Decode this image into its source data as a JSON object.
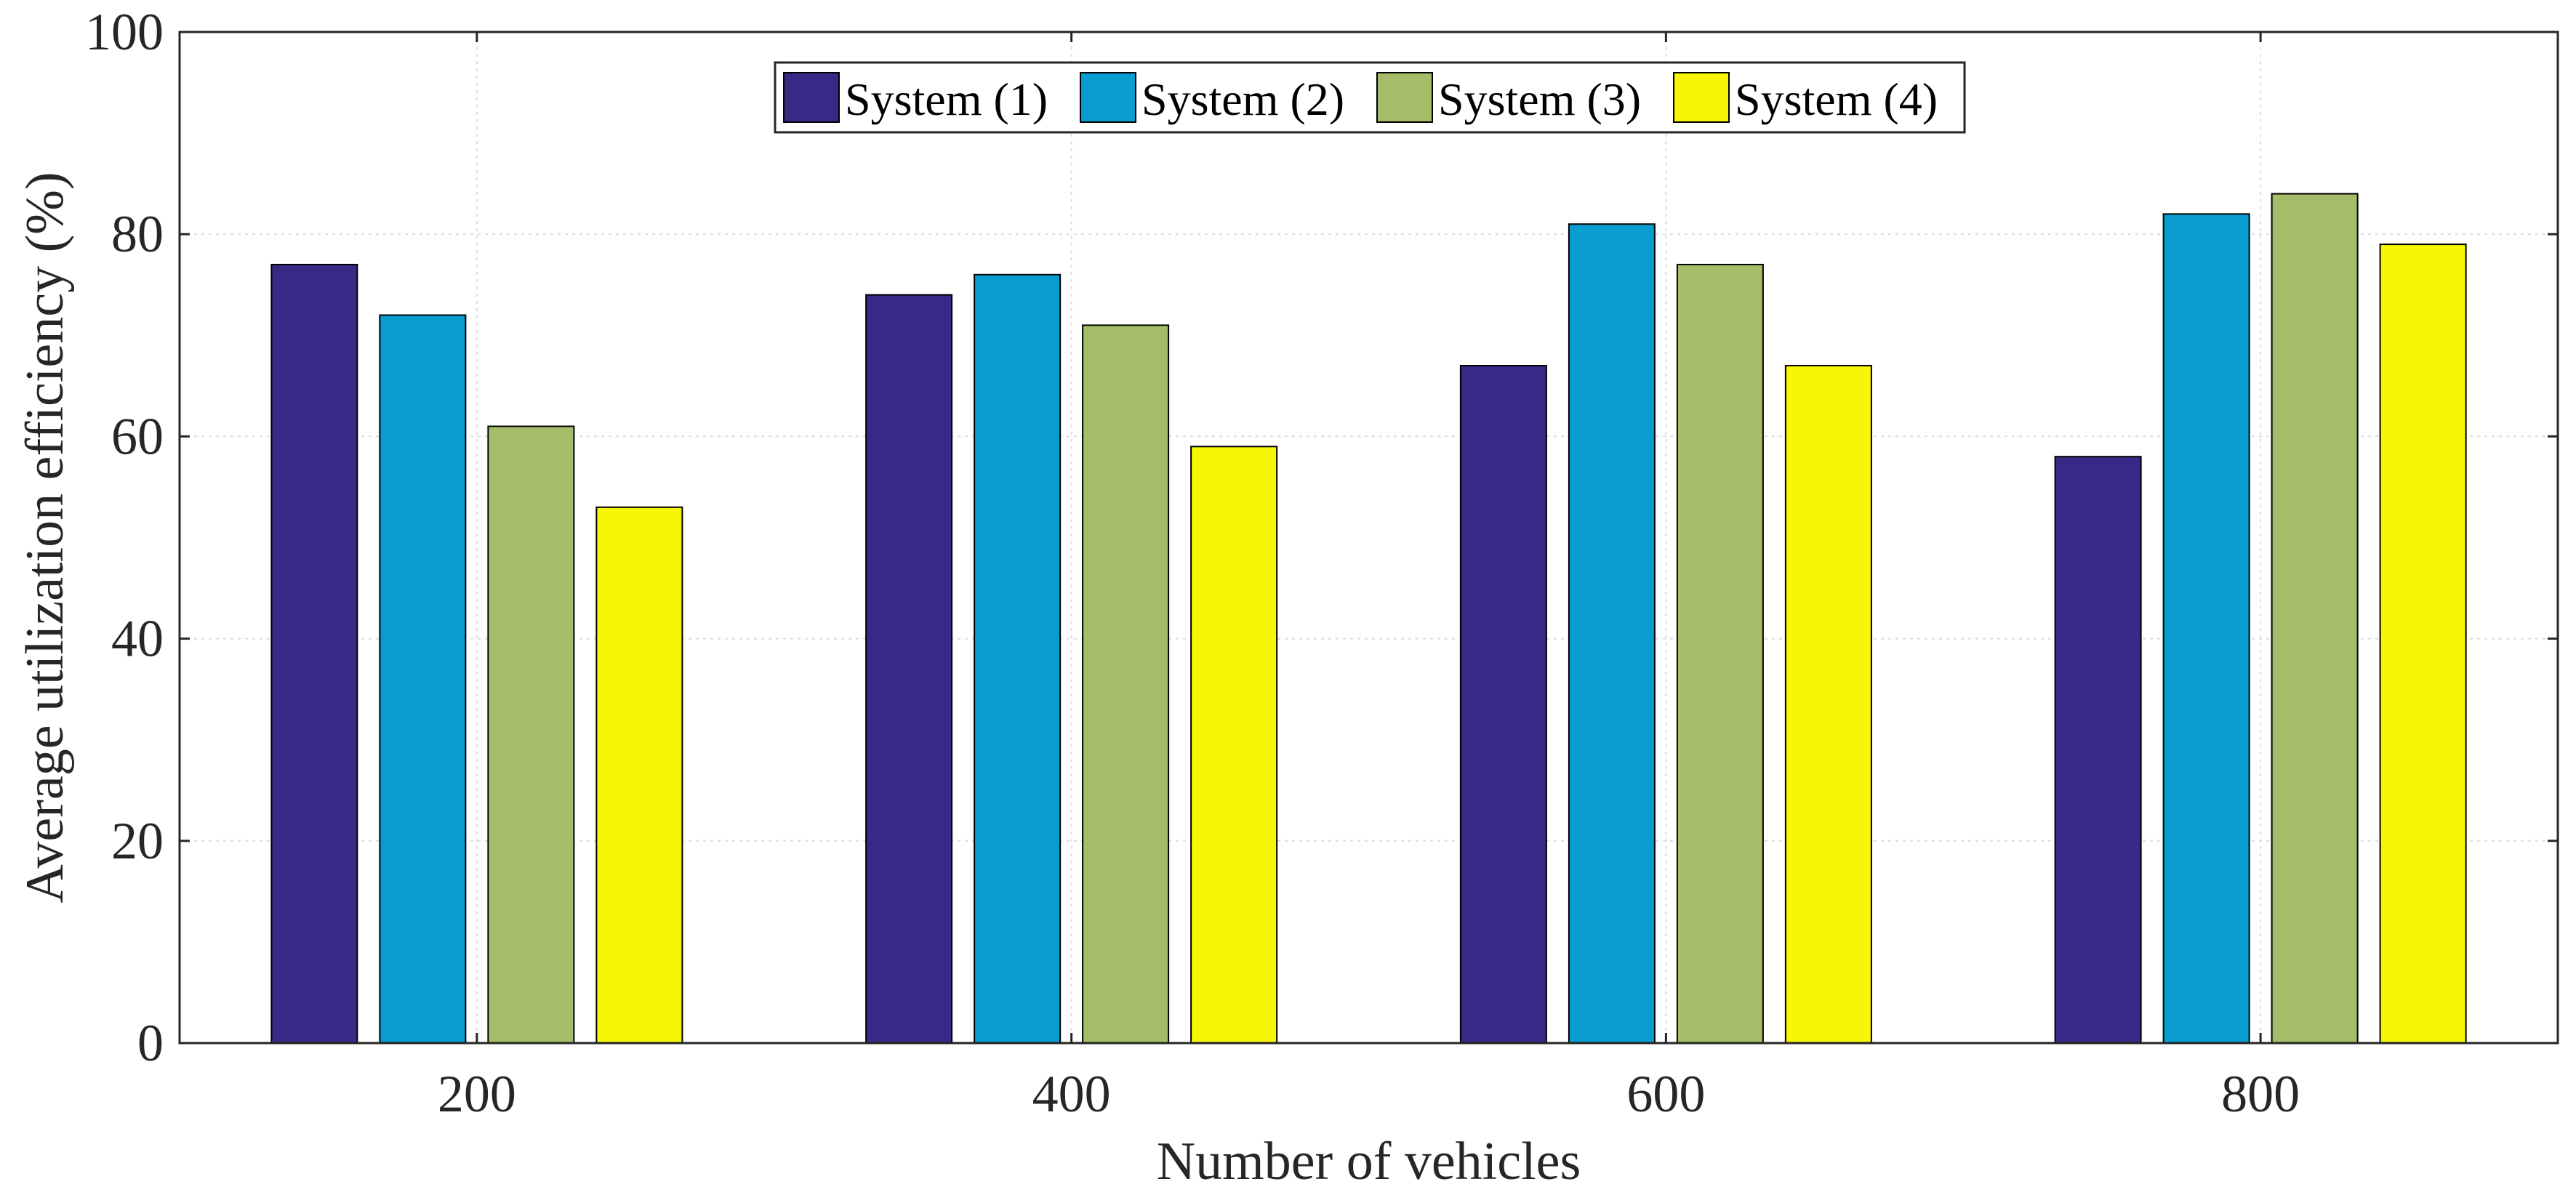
{
  "chart_data": {
    "type": "bar",
    "title": "",
    "xlabel": "Number of vehicles",
    "ylabel": "Average utilization efficiency (%)",
    "categories": [
      "200",
      "400",
      "600",
      "800"
    ],
    "ylim": [
      0,
      100
    ],
    "yticks": [
      0,
      20,
      40,
      60,
      80,
      100
    ],
    "grid": true,
    "legend_position": "top-center",
    "series": [
      {
        "name": "System (1)",
        "color": "#372a86",
        "values": [
          77,
          74,
          67,
          58
        ]
      },
      {
        "name": "System (2)",
        "color": "#089ccf",
        "values": [
          72,
          76,
          81,
          82
        ]
      },
      {
        "name": "System (3)",
        "color": "#a5bd69",
        "values": [
          61,
          71,
          77,
          84
        ]
      },
      {
        "name": "System (4)",
        "color": "#f7f607",
        "values": [
          53,
          59,
          67,
          79
        ]
      }
    ]
  }
}
